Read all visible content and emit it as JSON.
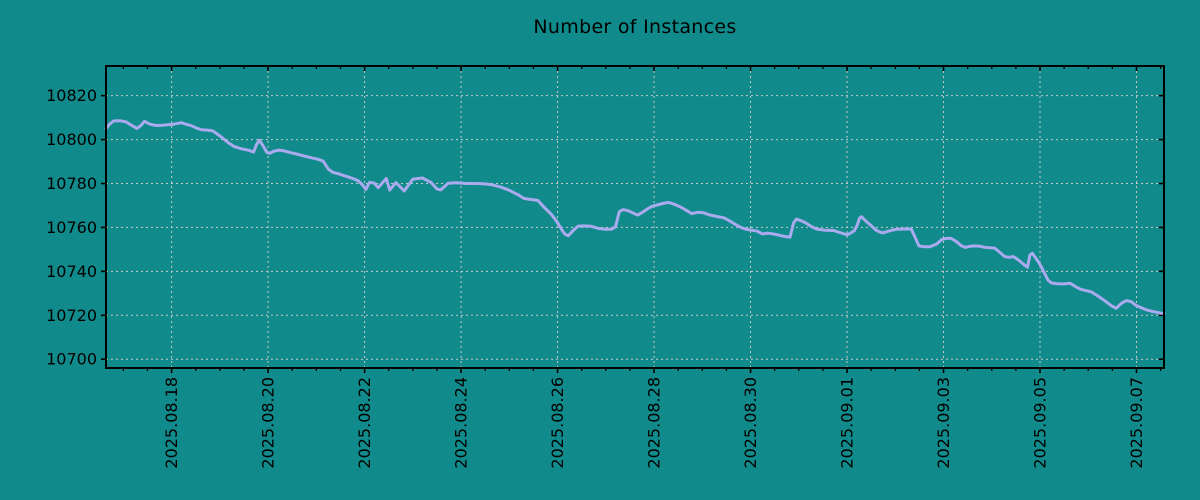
{
  "colors": {
    "background": "#108a8a",
    "line": "#aaaaee",
    "grid": "#c9c9c9",
    "axis": "#000000",
    "text": "#000000"
  },
  "chart_data": {
    "type": "line",
    "title": "Number of Instances",
    "xlabel": "",
    "ylabel": "",
    "grid": true,
    "legend": false,
    "x_encoding": "days since 2025-08-16 00:00",
    "x_range": [
      0.64,
      22.57
    ],
    "y_range": [
      10696,
      10833.5
    ],
    "x_ticks": [
      {
        "t": 2,
        "label": "2025.08.18"
      },
      {
        "t": 4,
        "label": "2025.08.20"
      },
      {
        "t": 6,
        "label": "2025.08.22"
      },
      {
        "t": 8,
        "label": "2025.08.24"
      },
      {
        "t": 10,
        "label": "2025.08.26"
      },
      {
        "t": 12,
        "label": "2025.08.28"
      },
      {
        "t": 14,
        "label": "2025.08.30"
      },
      {
        "t": 16,
        "label": "2025.09.01"
      },
      {
        "t": 18,
        "label": "2025.09.03"
      },
      {
        "t": 20,
        "label": "2025.09.05"
      },
      {
        "t": 22,
        "label": "2025.09.07"
      }
    ],
    "x_minor_ticks": {
      "start": 1.0,
      "end": 22.5,
      "step": 0.5
    },
    "y_ticks": [
      10700,
      10720,
      10740,
      10760,
      10780,
      10800,
      10820
    ],
    "series": [
      {
        "name": "instances",
        "color": "#aaaaee",
        "points": [
          [
            0.64,
            10805
          ],
          [
            0.72,
            10807.2
          ],
          [
            0.8,
            10808.5
          ],
          [
            0.93,
            10808.6
          ],
          [
            1.06,
            10808
          ],
          [
            1.17,
            10806.5
          ],
          [
            1.28,
            10805.1
          ],
          [
            1.36,
            10806.3
          ],
          [
            1.44,
            10808.3
          ],
          [
            1.55,
            10807
          ],
          [
            1.68,
            10806.4
          ],
          [
            1.82,
            10806.5
          ],
          [
            1.94,
            10806.8
          ],
          [
            2.04,
            10807
          ],
          [
            2.2,
            10807.7
          ],
          [
            2.32,
            10806.8
          ],
          [
            2.41,
            10806.3
          ],
          [
            2.52,
            10805.2
          ],
          [
            2.62,
            10804.5
          ],
          [
            2.75,
            10804.3
          ],
          [
            2.85,
            10804
          ],
          [
            2.95,
            10802.5
          ],
          [
            3.05,
            10800.8
          ],
          [
            3.18,
            10798.5
          ],
          [
            3.3,
            10796.8
          ],
          [
            3.45,
            10795.8
          ],
          [
            3.6,
            10795.1
          ],
          [
            3.7,
            10794.3
          ],
          [
            3.76,
            10797.7
          ],
          [
            3.82,
            10799.7
          ],
          [
            3.9,
            10797
          ],
          [
            3.97,
            10794.3
          ],
          [
            4.03,
            10793.7
          ],
          [
            4.13,
            10794.8
          ],
          [
            4.23,
            10795.2
          ],
          [
            4.34,
            10794.8
          ],
          [
            4.48,
            10794
          ],
          [
            4.63,
            10793.2
          ],
          [
            4.75,
            10792.5
          ],
          [
            4.9,
            10791.7
          ],
          [
            5.04,
            10791
          ],
          [
            5.14,
            10790.2
          ],
          [
            5.25,
            10786.5
          ],
          [
            5.35,
            10785
          ],
          [
            5.45,
            10784.5
          ],
          [
            5.56,
            10783.7
          ],
          [
            5.66,
            10783
          ],
          [
            5.76,
            10782.3
          ],
          [
            5.87,
            10781.2
          ],
          [
            5.95,
            10779.5
          ],
          [
            6.03,
            10777.3
          ],
          [
            6.1,
            10780.5
          ],
          [
            6.2,
            10780.2
          ],
          [
            6.28,
            10778.1
          ],
          [
            6.45,
            10782.3
          ],
          [
            6.52,
            10777
          ],
          [
            6.65,
            10780.4
          ],
          [
            6.82,
            10776.6
          ],
          [
            7,
            10782
          ],
          [
            7.2,
            10782.5
          ],
          [
            7.38,
            10780.4
          ],
          [
            7.5,
            10777.5
          ],
          [
            7.58,
            10777.1
          ],
          [
            7.73,
            10780.1
          ],
          [
            7.9,
            10780.3
          ],
          [
            8.1,
            10780
          ],
          [
            8.3,
            10780
          ],
          [
            8.5,
            10779.8
          ],
          [
            8.62,
            10779.5
          ],
          [
            8.83,
            10778.3
          ],
          [
            8.97,
            10777.2
          ],
          [
            9.18,
            10774.9
          ],
          [
            9.3,
            10773.2
          ],
          [
            9.45,
            10772.7
          ],
          [
            9.59,
            10772.3
          ],
          [
            9.73,
            10769
          ],
          [
            9.87,
            10766
          ],
          [
            9.95,
            10763.7
          ],
          [
            10.02,
            10761.5
          ],
          [
            10.08,
            10759.2
          ],
          [
            10.15,
            10757
          ],
          [
            10.22,
            10756.2
          ],
          [
            10.32,
            10758.5
          ],
          [
            10.42,
            10760.5
          ],
          [
            10.55,
            10760.7
          ],
          [
            10.7,
            10760.5
          ],
          [
            10.85,
            10759.5
          ],
          [
            11,
            10759.2
          ],
          [
            11.12,
            10759.2
          ],
          [
            11.2,
            10760.3
          ],
          [
            11.28,
            10767.2
          ],
          [
            11.36,
            10768.1
          ],
          [
            11.46,
            10767.6
          ],
          [
            11.56,
            10766.6
          ],
          [
            11.66,
            10765.6
          ],
          [
            11.76,
            10766.9
          ],
          [
            11.86,
            10768.4
          ],
          [
            11.96,
            10769.6
          ],
          [
            12.06,
            10770.2
          ],
          [
            12.18,
            10770.9
          ],
          [
            12.3,
            10771.4
          ],
          [
            12.42,
            10770.6
          ],
          [
            12.55,
            10769.3
          ],
          [
            12.68,
            10767.6
          ],
          [
            12.78,
            10766.3
          ],
          [
            12.9,
            10766.9
          ],
          [
            13.02,
            10766.7
          ],
          [
            13.15,
            10765.7
          ],
          [
            13.3,
            10765
          ],
          [
            13.45,
            10764.4
          ],
          [
            13.58,
            10762.8
          ],
          [
            13.7,
            10761.2
          ],
          [
            13.8,
            10760
          ],
          [
            13.92,
            10759.1
          ],
          [
            14.04,
            10758.7
          ],
          [
            14.14,
            10758.3
          ],
          [
            14.25,
            10757
          ],
          [
            14.35,
            10757.4
          ],
          [
            14.46,
            10757.1
          ],
          [
            14.57,
            10756.6
          ],
          [
            14.7,
            10755.9
          ],
          [
            14.82,
            10755.6
          ],
          [
            14.89,
            10762
          ],
          [
            14.95,
            10763.8
          ],
          [
            15.05,
            10763
          ],
          [
            15.15,
            10762
          ],
          [
            15.25,
            10760.5
          ],
          [
            15.37,
            10759.3
          ],
          [
            15.55,
            10758.7
          ],
          [
            15.72,
            10758.6
          ],
          [
            15.85,
            10757.7
          ],
          [
            15.95,
            10757
          ],
          [
            16.01,
            10756.7
          ],
          [
            16.08,
            10757.5
          ],
          [
            16.15,
            10758.5
          ],
          [
            16.21,
            10761
          ],
          [
            16.26,
            10764.3
          ],
          [
            16.3,
            10764.9
          ],
          [
            16.4,
            10762.7
          ],
          [
            16.5,
            10760.8
          ],
          [
            16.6,
            10758.8
          ],
          [
            16.67,
            10758
          ],
          [
            16.74,
            10757.5
          ],
          [
            16.84,
            10758.2
          ],
          [
            16.94,
            10758.8
          ],
          [
            17.04,
            10759.2
          ],
          [
            17.18,
            10759.3
          ],
          [
            17.33,
            10759.3
          ],
          [
            17.41,
            10755.5
          ],
          [
            17.49,
            10751.6
          ],
          [
            17.6,
            10751.2
          ],
          [
            17.72,
            10751.2
          ],
          [
            17.86,
            10752.5
          ],
          [
            17.97,
            10754.6
          ],
          [
            18.06,
            10755
          ],
          [
            18.16,
            10755
          ],
          [
            18.27,
            10753.5
          ],
          [
            18.37,
            10751.6
          ],
          [
            18.45,
            10750.9
          ],
          [
            18.55,
            10751.4
          ],
          [
            18.65,
            10751.6
          ],
          [
            18.76,
            10751.4
          ],
          [
            18.86,
            10750.9
          ],
          [
            19.06,
            10750.6
          ],
          [
            19.17,
            10748.6
          ],
          [
            19.27,
            10746.7
          ],
          [
            19.35,
            10746.4
          ],
          [
            19.45,
            10746.7
          ],
          [
            19.55,
            10745.2
          ],
          [
            19.65,
            10743.4
          ],
          [
            19.74,
            10741.9
          ],
          [
            19.79,
            10747.4
          ],
          [
            19.84,
            10748.2
          ],
          [
            19.9,
            10746.4
          ],
          [
            19.97,
            10744.2
          ],
          [
            20.03,
            10741.9
          ],
          [
            20.1,
            10738.9
          ],
          [
            20.17,
            10735.9
          ],
          [
            20.24,
            10734.7
          ],
          [
            20.36,
            10734.4
          ],
          [
            20.5,
            10734.3
          ],
          [
            20.62,
            10734.6
          ],
          [
            20.74,
            10733
          ],
          [
            20.85,
            10731.8
          ],
          [
            20.96,
            10731.2
          ],
          [
            21.06,
            10730.7
          ],
          [
            21.17,
            10729.2
          ],
          [
            21.27,
            10727.7
          ],
          [
            21.37,
            10726.2
          ],
          [
            21.48,
            10724.3
          ],
          [
            21.58,
            10723.2
          ],
          [
            21.69,
            10725.5
          ],
          [
            21.79,
            10726.7
          ],
          [
            21.89,
            10726.2
          ],
          [
            21.99,
            10724.5
          ],
          [
            22.1,
            10723.4
          ],
          [
            22.2,
            10722.5
          ],
          [
            22.3,
            10721.9
          ],
          [
            22.41,
            10721.4
          ],
          [
            22.5,
            10721
          ],
          [
            22.57,
            10720.8
          ]
        ]
      }
    ]
  }
}
